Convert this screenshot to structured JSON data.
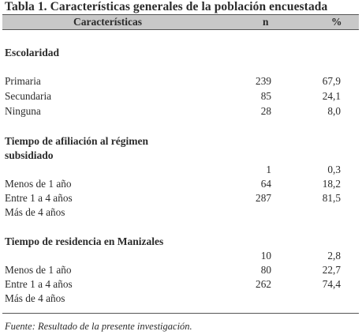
{
  "title": "Tabla 1. Características generales de la población encuestada",
  "columns": {
    "characteristic": "Características",
    "n": "n",
    "percent": "%"
  },
  "sections": [
    {
      "heading": "Escolaridad",
      "rows": [
        {
          "label": "Primaria",
          "n": "239",
          "pct": "67,9"
        },
        {
          "label": "Secundaria",
          "n": "85",
          "pct": "24,1"
        },
        {
          "label": "Ninguna",
          "n": "28",
          "pct": "8,0"
        }
      ]
    },
    {
      "heading_line1": "Tiempo de afiliación al régimen",
      "heading_line2": "subsidiado",
      "values": [
        {
          "n": "1",
          "pct": "0,3"
        },
        {
          "n": "64",
          "pct": "18,2"
        },
        {
          "n": "287",
          "pct": "81,5"
        }
      ],
      "labels": [
        "Menos de 1 año",
        "Entre 1 a 4 años",
        "Más de 4 años"
      ]
    },
    {
      "heading": "Tiempo de residencia en Manizales",
      "values": [
        {
          "n": "10",
          "pct": "2,8"
        },
        {
          "n": "80",
          "pct": "22,7"
        },
        {
          "n": "262",
          "pct": "74,4"
        }
      ],
      "labels": [
        "Menos de 1 año",
        "Entre 1 a 4 años",
        "Más de 4 años"
      ]
    }
  ],
  "footnote": "Fuente: Resultado de la presente investigación."
}
